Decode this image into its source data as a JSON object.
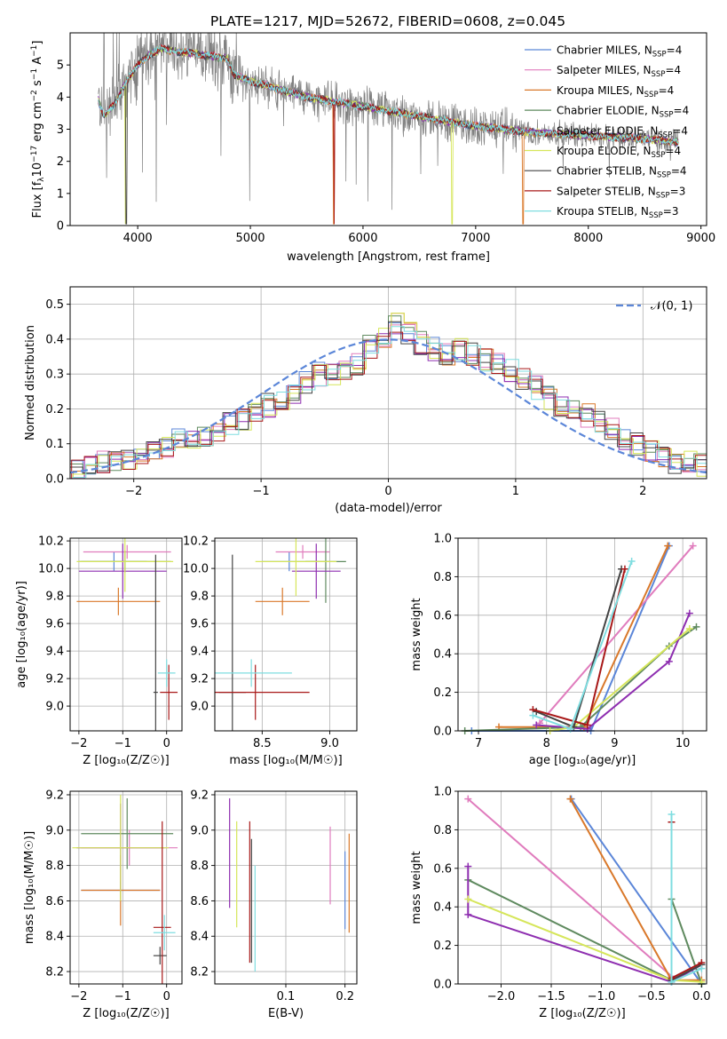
{
  "figure_title": "PLATE=1217, MJD=52672, FIBERID=0608, z=0.045",
  "colors": {
    "Chabrier MILES": "#5b86d8",
    "Salpeter MILES": "#e07cbd",
    "Kroupa MILES": "#d9782a",
    "Chabrier ELODIE": "#5f8a5f",
    "Salpeter ELODIE": "#8e2eb0",
    "Kroupa ELODIE": "#d6e65a",
    "Chabrier STELIB": "#444444",
    "Salpeter STELIB": "#a81818",
    "Kroupa STELIB": "#7fdde0",
    "data": "#808080",
    "normal": "#5b86d8"
  },
  "chart_data": [
    {
      "type": "line",
      "xlabel": "wavelength [Angstrom, rest frame]",
      "ylabel_parts": [
        "Flux [f",
        "λ",
        "10",
        "−17",
        " erg cm",
        "−2",
        " s",
        "−1",
        " A",
        "−1",
        "]"
      ],
      "xlim": [
        3400,
        9050
      ],
      "ylim": [
        0,
        6
      ],
      "xticks": [
        "4000",
        "5000",
        "6000",
        "7000",
        "8000",
        "9000"
      ],
      "yticks": [
        "0",
        "1",
        "2",
        "3",
        "4",
        "5"
      ],
      "continuum_x": [
        3650,
        3700,
        3800,
        3900,
        4000,
        4100,
        4200,
        4400,
        4600,
        4800,
        4850,
        5000,
        5500,
        6000,
        6500,
        7000,
        7500,
        8000,
        8500,
        8800
      ],
      "continuum_y": [
        3.9,
        3.4,
        3.8,
        4.5,
        5.0,
        5.3,
        5.5,
        5.4,
        5.3,
        5.2,
        4.7,
        4.5,
        4.0,
        3.7,
        3.4,
        3.1,
        2.9,
        2.8,
        2.7,
        2.6
      ],
      "legend": [
        {
          "label": "Chabrier MILES",
          "nssp": "4"
        },
        {
          "label": "Salpeter MILES",
          "nssp": "4"
        },
        {
          "label": "Kroupa MILES",
          "nssp": "4"
        },
        {
          "label": "Chabrier ELODIE",
          "nssp": "4"
        },
        {
          "label": "Salpeter ELODIE",
          "nssp": "4"
        },
        {
          "label": "Kroupa ELODIE",
          "nssp": "4"
        },
        {
          "label": "Chabrier STELIB",
          "nssp": "4"
        },
        {
          "label": "Salpeter STELIB",
          "nssp": "3"
        },
        {
          "label": "Kroupa STELIB",
          "nssp": "3"
        }
      ],
      "legend_prefix": "N",
      "legend_sub": "SSP"
    },
    {
      "type": "bar",
      "xlabel": "(data-model)/error",
      "ylabel": "Normed distribution",
      "xlim": [
        -2.5,
        2.5
      ],
      "ylim": [
        0,
        0.55
      ],
      "xticks": [
        {
          "v": -2,
          "l": "−2"
        },
        {
          "v": -1,
          "l": "−1"
        },
        {
          "v": 0,
          "l": "0"
        },
        {
          "v": 1,
          "l": "1"
        },
        {
          "v": 2,
          "l": "2"
        }
      ],
      "yticks": [
        {
          "v": 0,
          "l": "0.0"
        },
        {
          "v": 0.1,
          "l": "0.1"
        },
        {
          "v": 0.2,
          "l": "0.2"
        },
        {
          "v": 0.3,
          "l": "0.3"
        },
        {
          "v": 0.4,
          "l": "0.4"
        },
        {
          "v": 0.5,
          "l": "0.5"
        }
      ],
      "bin_width": 0.1,
      "bin_start": -2.5,
      "base_values": [
        0.025,
        0.035,
        0.045,
        0.05,
        0.06,
        0.075,
        0.085,
        0.095,
        0.11,
        0.12,
        0.125,
        0.14,
        0.155,
        0.17,
        0.19,
        0.21,
        0.23,
        0.25,
        0.28,
        0.3,
        0.3,
        0.32,
        0.33,
        0.38,
        0.4,
        0.44,
        0.42,
        0.39,
        0.37,
        0.36,
        0.37,
        0.36,
        0.34,
        0.33,
        0.31,
        0.29,
        0.26,
        0.23,
        0.21,
        0.2,
        0.18,
        0.16,
        0.14,
        0.11,
        0.1,
        0.08,
        0.065,
        0.05,
        0.045,
        0.04
      ],
      "legend_label": "𝒩(0, 1)"
    },
    {
      "type": "scatter",
      "xlabel": "Z [log₁₀(Z/Z☉)]",
      "ylabel": "age  [log₁₀(age/yr)]",
      "xlim": [
        -2.2,
        0.35
      ],
      "ylim": [
        8.82,
        10.22
      ],
      "xticks": [
        {
          "v": -2,
          "l": "−2"
        },
        {
          "v": -1,
          "l": "−1"
        },
        {
          "v": 0,
          "l": "0"
        }
      ],
      "yticks": [
        {
          "v": 9.0,
          "l": "9.0"
        },
        {
          "v": 9.2,
          "l": "9.2"
        },
        {
          "v": 9.4,
          "l": "9.4"
        },
        {
          "v": 9.6,
          "l": "9.6"
        },
        {
          "v": 9.8,
          "l": "9.8"
        },
        {
          "v": 10.0,
          "l": "10.0"
        },
        {
          "v": 10.2,
          "l": "10.2"
        }
      ],
      "points": [
        {
          "s": "Chabrier MILES",
          "x": -1.2,
          "y": 10.05,
          "xe": 0.75,
          "ye": 0.07
        },
        {
          "s": "Salpeter MILES",
          "x": -0.9,
          "y": 10.12,
          "xe": 1.0,
          "ye": 0.05
        },
        {
          "s": "Kroupa MILES",
          "x": -1.1,
          "y": 9.76,
          "xe": 0.95,
          "ye": 0.1
        },
        {
          "s": "Chabrier ELODIE",
          "x": -0.95,
          "y": 10.05,
          "xe": 1.05,
          "ye": 0.08
        },
        {
          "s": "Salpeter ELODIE",
          "x": -1.0,
          "y": 9.98,
          "xe": 1.0,
          "ye": 0.2
        },
        {
          "s": "Kroupa ELODIE",
          "x": -0.95,
          "y": 10.05,
          "xe": 1.1,
          "ye": 0.22
        },
        {
          "s": "Chabrier STELIB",
          "x": -0.25,
          "y": 9.1,
          "xe": 0.05,
          "ye": 1.0
        },
        {
          "s": "Salpeter STELIB",
          "x": 0.05,
          "y": 9.1,
          "xe": 0.2,
          "ye": 0.2
        },
        {
          "s": "Kroupa STELIB",
          "x": 0.0,
          "y": 9.24,
          "xe": 0.2,
          "ye": 0.1
        }
      ]
    },
    {
      "type": "scatter",
      "xlabel": "mass [log₁₀(M/M☉)]",
      "ylabel": "",
      "xlim": [
        8.15,
        9.2
      ],
      "ylim": [
        8.82,
        10.22
      ],
      "xticks": [
        {
          "v": 8.5,
          "l": "8.5"
        },
        {
          "v": 9.0,
          "l": "9.0"
        }
      ],
      "yticks": [
        {
          "v": 9.0,
          "l": "9.0"
        },
        {
          "v": 9.2,
          "l": "9.2"
        },
        {
          "v": 9.4,
          "l": "9.4"
        },
        {
          "v": 9.6,
          "l": "9.6"
        },
        {
          "v": 9.8,
          "l": "9.8"
        },
        {
          "v": 10.0,
          "l": "10.0"
        },
        {
          "v": 10.2,
          "l": "10.2"
        }
      ],
      "points": [
        {
          "s": "Chabrier MILES",
          "x": 8.7,
          "y": 10.05,
          "xe": 0.2,
          "ye": 0.07
        },
        {
          "s": "Salpeter MILES",
          "x": 8.8,
          "y": 10.12,
          "xe": 0.2,
          "ye": 0.05
        },
        {
          "s": "Kroupa MILES",
          "x": 8.65,
          "y": 9.76,
          "xe": 0.2,
          "ye": 0.1
        },
        {
          "s": "Chabrier ELODIE",
          "x": 8.97,
          "y": 10.05,
          "xe": 0.15,
          "ye": 0.3
        },
        {
          "s": "Salpeter ELODIE",
          "x": 8.9,
          "y": 9.98,
          "xe": 0.18,
          "ye": 0.2
        },
        {
          "s": "Kroupa ELODIE",
          "x": 8.75,
          "y": 10.05,
          "xe": 0.3,
          "ye": 0.25
        },
        {
          "s": "Chabrier STELIB",
          "x": 8.28,
          "y": 9.1,
          "xe": 0.1,
          "ye": 1.0
        },
        {
          "s": "Salpeter STELIB",
          "x": 8.45,
          "y": 9.1,
          "xe": 0.4,
          "ye": 0.2
        },
        {
          "s": "Kroupa STELIB",
          "x": 8.42,
          "y": 9.24,
          "xe": 0.3,
          "ye": 0.1
        }
      ]
    },
    {
      "type": "line",
      "xlabel": "age  [log₁₀(age/yr)]",
      "ylabel": "mass weight",
      "xlim": [
        6.7,
        10.35
      ],
      "ylim": [
        0,
        1.0
      ],
      "xticks": [
        {
          "v": 7,
          "l": "7"
        },
        {
          "v": 8,
          "l": "8"
        },
        {
          "v": 9,
          "l": "9"
        },
        {
          "v": 10,
          "l": "10"
        }
      ],
      "yticks": [
        {
          "v": 0,
          "l": "0.0"
        },
        {
          "v": 0.2,
          "l": "0.2"
        },
        {
          "v": 0.4,
          "l": "0.4"
        },
        {
          "v": 0.6,
          "l": "0.6"
        },
        {
          "v": 0.8,
          "l": "0.8"
        },
        {
          "v": 1.0,
          "l": "1.0"
        }
      ],
      "series": [
        {
          "name": "Chabrier MILES",
          "x": [
            6.9,
            8.65,
            9.8
          ],
          "y": [
            0.0,
            0.0,
            0.96
          ]
        },
        {
          "name": "Salpeter MILES",
          "x": [
            7.9,
            10.15
          ],
          "y": [
            0.04,
            0.96
          ]
        },
        {
          "name": "Kroupa MILES",
          "x": [
            7.3,
            8.55,
            9.78
          ],
          "y": [
            0.02,
            0.02,
            0.96
          ]
        },
        {
          "name": "Chabrier ELODIE",
          "x": [
            6.8,
            8.5,
            9.8,
            10.2
          ],
          "y": [
            0.0,
            0.02,
            0.44,
            0.54
          ]
        },
        {
          "name": "Salpeter ELODIE",
          "x": [
            7.85,
            8.6,
            9.8,
            10.1
          ],
          "y": [
            0.03,
            0.01,
            0.36,
            0.61
          ]
        },
        {
          "name": "Kroupa ELODIE",
          "x": [
            8.05,
            8.4,
            10.1
          ],
          "y": [
            0.0,
            0.02,
            0.53
          ]
        },
        {
          "name": "Chabrier STELIB",
          "x": [
            7.85,
            8.4,
            9.1
          ],
          "y": [
            0.1,
            0.02,
            0.84
          ]
        },
        {
          "name": "Salpeter STELIB",
          "x": [
            7.8,
            8.6,
            9.15
          ],
          "y": [
            0.11,
            0.03,
            0.84
          ]
        },
        {
          "name": "Kroupa STELIB",
          "x": [
            7.8,
            8.35,
            9.25
          ],
          "y": [
            0.08,
            0.01,
            0.88
          ]
        }
      ]
    },
    {
      "type": "scatter",
      "xlabel": "Z [log₁₀(Z/Z☉)]",
      "ylabel": "mass [log₁₀(M/M☉)]",
      "xlim": [
        -2.2,
        0.35
      ],
      "ylim": [
        8.13,
        9.22
      ],
      "xticks": [
        {
          "v": -2,
          "l": "−2"
        },
        {
          "v": -1,
          "l": "−1"
        },
        {
          "v": 0,
          "l": "0"
        }
      ],
      "yticks": [
        {
          "v": 8.2,
          "l": "8.2"
        },
        {
          "v": 8.4,
          "l": "8.4"
        },
        {
          "v": 8.6,
          "l": "8.6"
        },
        {
          "v": 8.8,
          "l": "8.8"
        },
        {
          "v": 9.0,
          "l": "9.0"
        },
        {
          "v": 9.2,
          "l": "9.2"
        }
      ],
      "points": [
        {
          "s": "Chabrier MILES",
          "x": -1.05,
          "y": 8.66,
          "xe": 0.9,
          "ye": 0.05
        },
        {
          "s": "Salpeter MILES",
          "x": -0.85,
          "y": 8.9,
          "xe": 1.1,
          "ye": 0.1
        },
        {
          "s": "Kroupa MILES",
          "x": -1.05,
          "y": 8.66,
          "xe": 0.9,
          "ye": 0.2
        },
        {
          "s": "Chabrier ELODIE",
          "x": -0.9,
          "y": 8.98,
          "xe": 1.05,
          "ye": 0.2
        },
        {
          "s": "Salpeter ELODIE",
          "x": -1.05,
          "y": 8.9,
          "xe": 1.0,
          "ye": 0.25
        },
        {
          "s": "Kroupa ELODIE",
          "x": -1.05,
          "y": 8.9,
          "xe": 1.1,
          "ye": 0.3
        },
        {
          "s": "Chabrier STELIB",
          "x": -0.15,
          "y": 8.29,
          "xe": 0.15,
          "ye": 0.05
        },
        {
          "s": "Salpeter STELIB",
          "x": -0.1,
          "y": 8.45,
          "xe": 0.2,
          "ye": 0.6
        },
        {
          "s": "Kroupa STELIB",
          "x": -0.05,
          "y": 8.42,
          "xe": 0.25,
          "ye": 0.1
        }
      ]
    },
    {
      "type": "scatter",
      "xlabel": "E(B-V)",
      "ylabel": "",
      "xlim": [
        -0.02,
        0.22
      ],
      "ylim": [
        8.13,
        9.22
      ],
      "xticks": [
        {
          "v": 0.1,
          "l": "0.1"
        },
        {
          "v": 0.2,
          "l": "0.2"
        }
      ],
      "yticks": [
        {
          "v": 8.2,
          "l": "8.2"
        },
        {
          "v": 8.4,
          "l": "8.4"
        },
        {
          "v": 8.6,
          "l": "8.6"
        },
        {
          "v": 8.8,
          "l": "8.8"
        },
        {
          "v": 9.0,
          "l": "9.0"
        },
        {
          "v": 9.2,
          "l": "9.2"
        }
      ],
      "points": [
        {
          "s": "Chabrier MILES",
          "x": 0.2,
          "y": 8.66,
          "xe": 0,
          "ye": 0.22
        },
        {
          "s": "Salpeter MILES",
          "x": 0.175,
          "y": 8.8,
          "xe": 0,
          "ye": 0.22
        },
        {
          "s": "Kroupa MILES",
          "x": 0.207,
          "y": 8.7,
          "xe": 0,
          "ye": 0.28
        },
        {
          "s": "Chabrier ELODIE",
          "x": 0.005,
          "y": 8.8,
          "xe": 0,
          "ye": 0.0
        },
        {
          "s": "Salpeter ELODIE",
          "x": 0.005,
          "y": 8.87,
          "xe": 0,
          "ye": 0.31
        },
        {
          "s": "Kroupa ELODIE",
          "x": 0.017,
          "y": 8.75,
          "xe": 0,
          "ye": 0.3
        },
        {
          "s": "Chabrier STELIB",
          "x": 0.042,
          "y": 8.6,
          "xe": 0,
          "ye": 0.35
        },
        {
          "s": "Salpeter STELIB",
          "x": 0.039,
          "y": 8.65,
          "xe": 0,
          "ye": 0.4
        },
        {
          "s": "Kroupa STELIB",
          "x": 0.048,
          "y": 8.5,
          "xe": 0,
          "ye": 0.3
        }
      ]
    },
    {
      "type": "line",
      "xlabel": "Z [log₁₀(Z/Z☉)]",
      "ylabel": "mass weight",
      "xlim": [
        -2.43,
        0.05
      ],
      "ylim": [
        0,
        1.0
      ],
      "xticks": [
        {
          "v": -2.0,
          "l": "−2.0"
        },
        {
          "v": -1.5,
          "l": "−1.5"
        },
        {
          "v": -1.0,
          "l": "−1.0"
        },
        {
          "v": -0.5,
          "l": "−0.5"
        },
        {
          "v": 0.0,
          "l": "0.0"
        }
      ],
      "yticks": [
        {
          "v": 0,
          "l": "0.0"
        },
        {
          "v": 0.2,
          "l": "0.2"
        },
        {
          "v": 0.4,
          "l": "0.4"
        },
        {
          "v": 0.6,
          "l": "0.6"
        },
        {
          "v": 0.8,
          "l": "0.8"
        },
        {
          "v": 1.0,
          "l": "1.0"
        }
      ],
      "series": [
        {
          "name": "Chabrier MILES",
          "x": [
            -1.3,
            0.0
          ],
          "y": [
            0.96,
            0.0
          ]
        },
        {
          "name": "Salpeter MILES",
          "x": [
            -2.33,
            -0.3
          ],
          "y": [
            0.96,
            0.04
          ]
        },
        {
          "name": "Kroupa MILES",
          "x": [
            -1.31,
            -0.3,
            0.0
          ],
          "y": [
            0.96,
            0.02,
            0.02
          ]
        },
        {
          "name": "Chabrier ELODIE",
          "x": [
            -2.33,
            -0.3,
            -0.3,
            0.0
          ],
          "y": [
            0.54,
            0.02,
            0.44,
            0.0
          ]
        },
        {
          "name": "Salpeter ELODIE",
          "x": [
            -2.33,
            -2.33,
            -0.3,
            0.0
          ],
          "y": [
            0.61,
            0.36,
            0.01,
            0.1
          ]
        },
        {
          "name": "Kroupa ELODIE",
          "x": [
            -2.33,
            -0.3,
            0.0
          ],
          "y": [
            0.44,
            0.02,
            0.01
          ]
        },
        {
          "name": "Chabrier STELIB",
          "x": [
            -0.3,
            -0.3,
            0.0
          ],
          "y": [
            0.84,
            0.02,
            0.1
          ]
        },
        {
          "name": "Salpeter STELIB",
          "x": [
            -0.3,
            -0.3,
            0.0
          ],
          "y": [
            0.84,
            0.03,
            0.11
          ]
        },
        {
          "name": "Kroupa STELIB",
          "x": [
            -0.3,
            -0.3,
            0.0
          ],
          "y": [
            0.88,
            0.01,
            0.08
          ]
        }
      ]
    }
  ]
}
